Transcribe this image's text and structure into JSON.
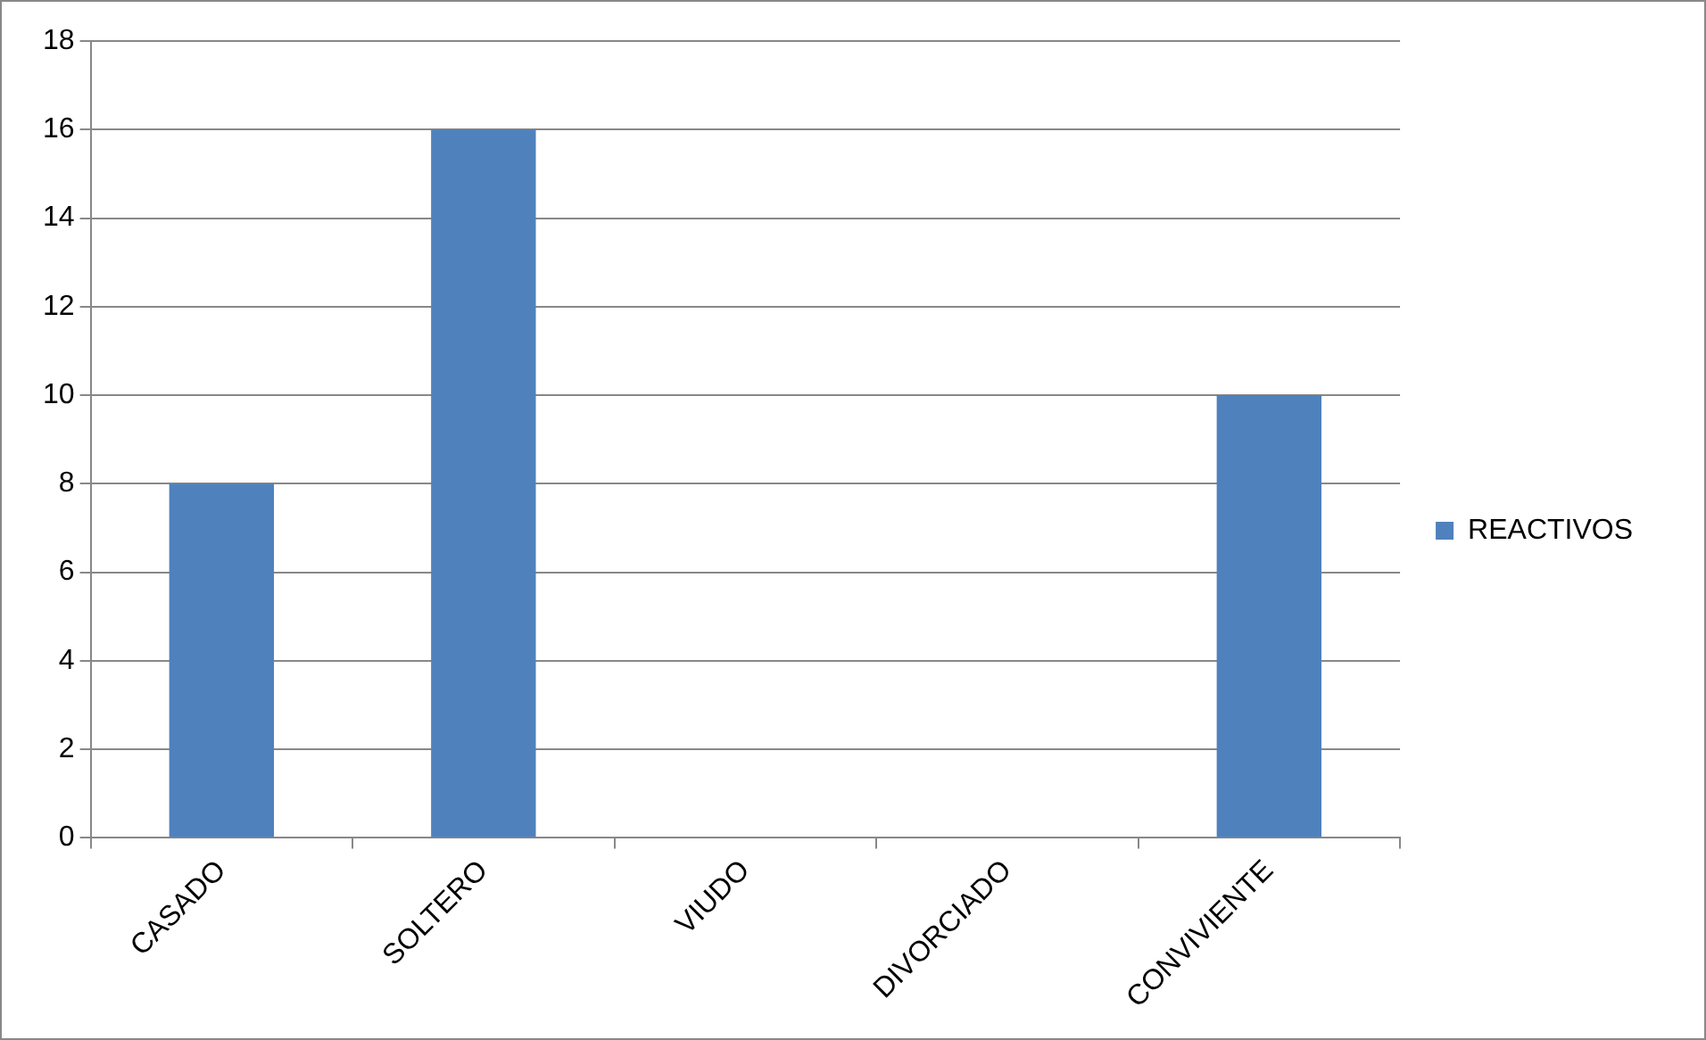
{
  "chart_data": {
    "type": "bar",
    "categories": [
      "CASADO",
      "SOLTERO",
      "VIUDO",
      "DIVORCIADO",
      "CONVIVIENTE"
    ],
    "series": [
      {
        "name": "REACTIVOS",
        "color": "#4f81bd",
        "values": [
          8,
          16,
          0,
          0,
          10
        ]
      }
    ],
    "ylim": [
      0,
      18
    ],
    "yticks": [
      0,
      2,
      4,
      6,
      8,
      10,
      12,
      14,
      16,
      18
    ],
    "grid": "y",
    "legend": "right"
  }
}
